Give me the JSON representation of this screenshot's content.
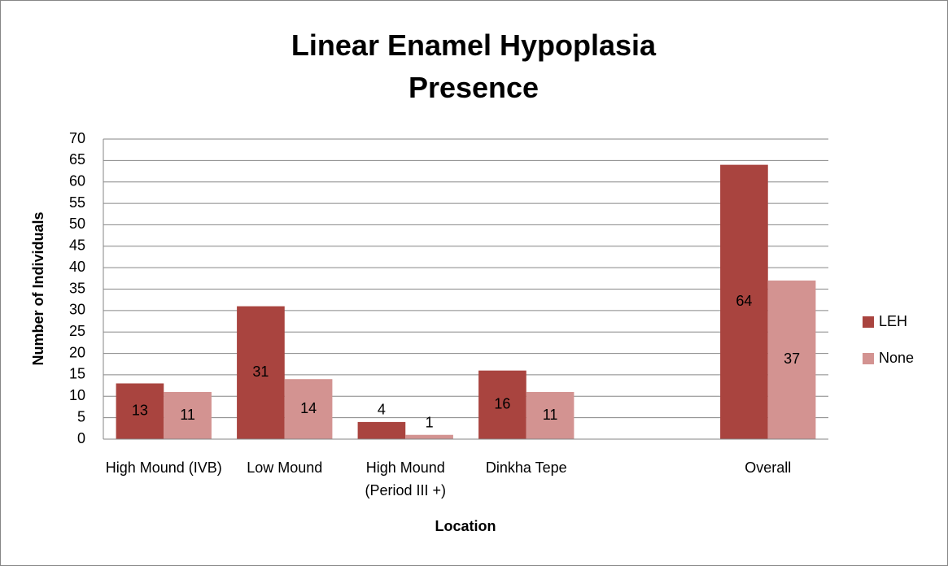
{
  "chart_data": {
    "type": "bar",
    "title": "Linear Enamel Hypoplasia Presence",
    "x_label": "Location",
    "y_label": "Number of Individuals",
    "categories": [
      "High Mound (IVB)",
      "Low Mound",
      "High Mound (Period III +)",
      "Dinkha Tepe",
      null,
      "Overall"
    ],
    "series": [
      {
        "name": "LEH",
        "color": "#a9443f",
        "values": [
          13,
          31,
          4,
          16,
          null,
          64
        ]
      },
      {
        "name": "None",
        "color": "#d39391",
        "values": [
          11,
          14,
          1,
          11,
          null,
          37
        ]
      }
    ],
    "ylim": [
      0,
      70
    ],
    "yticks": [
      0,
      5,
      10,
      15,
      20,
      25,
      30,
      35,
      40,
      45,
      50,
      55,
      60,
      65,
      70
    ],
    "grid": true,
    "legend": "right"
  }
}
